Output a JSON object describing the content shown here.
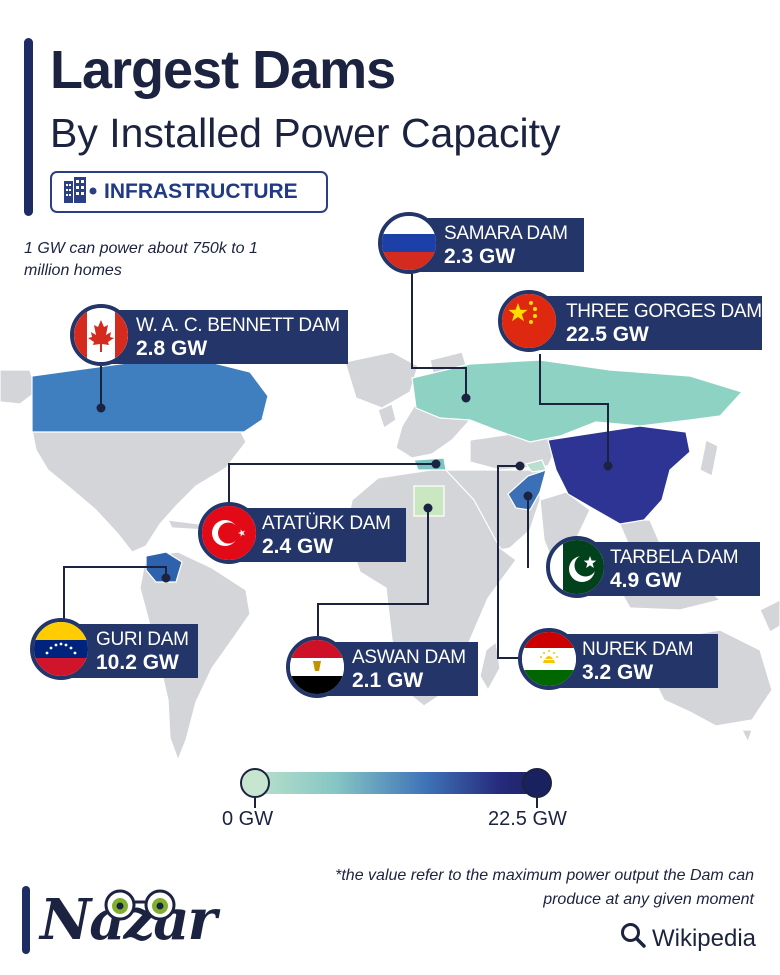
{
  "header": {
    "title": "Largest Dams",
    "subtitle": "By Installed Power Capacity",
    "category": "INFRASTRUCTURE",
    "category_icon": "building-icon"
  },
  "note": "1 GW can power about 750k to 1 million homes",
  "colors": {
    "brand_navy": "#233569",
    "land_grey": "#d4d5d8",
    "scale_low": "#bfe3cc",
    "scale_high": "#1a2160"
  },
  "dams": [
    {
      "id": "samara",
      "name": "SAMARA DAM",
      "value": "2.3 GW",
      "country": "Russia",
      "flag": "russia-flag-icon",
      "capacity_gw": 2.3
    },
    {
      "id": "three-gorges",
      "name": "THREE GORGES DAM",
      "value": "22.5 GW",
      "country": "China",
      "flag": "china-flag-icon",
      "capacity_gw": 22.5
    },
    {
      "id": "wac-bennett",
      "name": "W. A. C. BENNETT DAM",
      "value": "2.8 GW",
      "country": "Canada",
      "flag": "canada-flag-icon",
      "capacity_gw": 2.8
    },
    {
      "id": "ataturk",
      "name": "ATATÜRK DAM",
      "value": "2.4 GW",
      "country": "Turkey",
      "flag": "turkey-flag-icon",
      "capacity_gw": 2.4
    },
    {
      "id": "tarbela",
      "name": "TARBELA DAM",
      "value": "4.9 GW",
      "country": "Pakistan",
      "flag": "pakistan-flag-icon",
      "capacity_gw": 4.9
    },
    {
      "id": "guri",
      "name": "GURI DAM",
      "value": "10.2 GW",
      "country": "Venezuela",
      "flag": "venezuela-flag-icon",
      "capacity_gw": 10.2
    },
    {
      "id": "aswan",
      "name": "ASWAN DAM",
      "value": "2.1 GW",
      "country": "Egypt",
      "flag": "egypt-flag-icon",
      "capacity_gw": 2.1
    },
    {
      "id": "nurek",
      "name": "NUREK DAM",
      "value": "3.2 GW",
      "country": "Tajikistan",
      "flag": "tajikistan-flag-icon",
      "capacity_gw": 3.2
    }
  ],
  "legend": {
    "min_label": "0 GW",
    "max_label": "22.5 GW",
    "min_gw": 0,
    "max_gw": 22.5
  },
  "footnote": "*the value refer to the maximum power output the Dam can produce at any given moment",
  "brand": {
    "logo": "Nazar",
    "source": "Wikipedia",
    "source_icon": "search-icon"
  }
}
